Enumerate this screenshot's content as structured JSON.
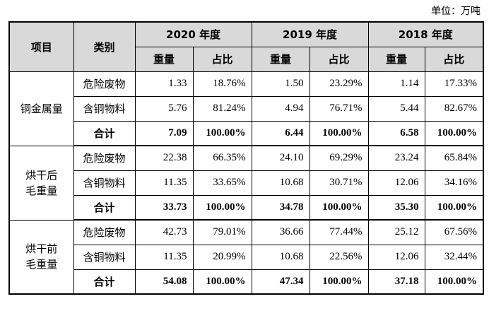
{
  "unit": "单位：万吨",
  "header": {
    "item": "项目",
    "category": "类别",
    "years": [
      {
        "year": "2020 年度",
        "columns": [
          "重量",
          "占比"
        ]
      },
      {
        "year": "2019 年度",
        "columns": [
          "重量",
          "占比"
        ]
      },
      {
        "year": "2018 年度",
        "columns": [
          "重量",
          "占比"
        ]
      }
    ]
  },
  "groups": [
    {
      "label": [
        "铜金属量"
      ],
      "rows": [
        {
          "category": "危险废物",
          "values": [
            "1.33",
            "18.76%",
            "1.50",
            "23.29%",
            "1.14",
            "17.33%"
          ]
        },
        {
          "category": "含铜物料",
          "values": [
            "5.76",
            "81.24%",
            "4.94",
            "76.71%",
            "5.44",
            "82.67%"
          ]
        },
        {
          "category": "合计",
          "values": [
            "7.09",
            "100.00%",
            "6.44",
            "100.00%",
            "6.58",
            "100.00%"
          ]
        }
      ]
    },
    {
      "label": [
        "烘干后",
        "毛重量"
      ],
      "rows": [
        {
          "category": "危险废物",
          "values": [
            "22.38",
            "66.35%",
            "24.10",
            "69.29%",
            "23.24",
            "65.84%"
          ]
        },
        {
          "category": "含铜物料",
          "values": [
            "11.35",
            "33.65%",
            "10.68",
            "30.71%",
            "12.06",
            "34.16%"
          ]
        },
        {
          "category": "合计",
          "values": [
            "33.73",
            "100.00%",
            "34.78",
            "100.00%",
            "35.30",
            "100.00%"
          ]
        }
      ]
    },
    {
      "label": [
        "烘干前",
        "毛重量"
      ],
      "rows": [
        {
          "category": "危险废物",
          "values": [
            "42.73",
            "79.01%",
            "36.66",
            "77.44%",
            "25.12",
            "67.56%"
          ]
        },
        {
          "category": "含铜物料",
          "values": [
            "11.35",
            "20.99%",
            "10.68",
            "22.56%",
            "12.06",
            "32.44%"
          ]
        },
        {
          "category": "合计",
          "values": [
            "54.08",
            "100.00%",
            "47.34",
            "100.00%",
            "37.18",
            "100.00%"
          ]
        }
      ]
    }
  ]
}
